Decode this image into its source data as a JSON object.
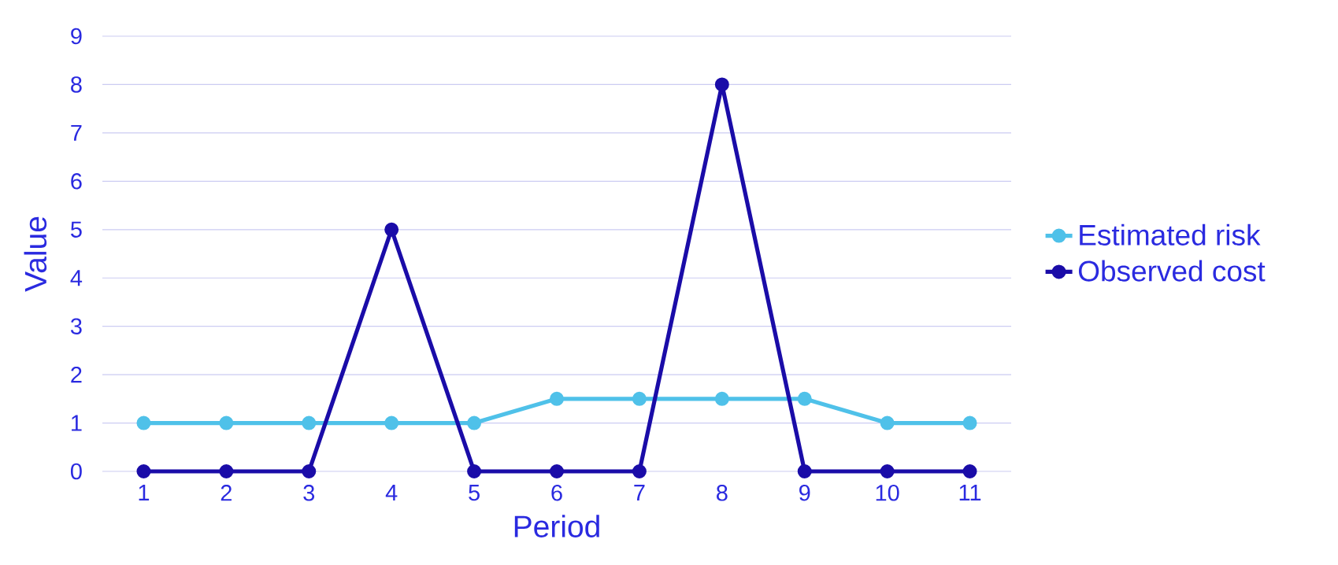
{
  "chart_data": {
    "type": "line",
    "xlabel": "Period",
    "ylabel": "Value",
    "categories": [
      "1",
      "2",
      "3",
      "4",
      "5",
      "6",
      "7",
      "8",
      "9",
      "10",
      "11"
    ],
    "series": [
      {
        "name": "Estimated risk",
        "color": "#4fc1e9",
        "values": [
          1,
          1,
          1,
          1,
          1,
          1.5,
          1.5,
          1.5,
          1.5,
          1,
          1
        ]
      },
      {
        "name": "Observed cost",
        "color": "#1a0ca8",
        "values": [
          0,
          0,
          0,
          5,
          0,
          0,
          0,
          8,
          0,
          0,
          0
        ]
      }
    ],
    "ylim": [
      0,
      9
    ],
    "yticks": [
      0,
      1,
      2,
      3,
      4,
      5,
      6,
      7,
      8,
      9
    ],
    "grid": "y",
    "legend": "right",
    "marker": "circle",
    "line_style": "solid"
  }
}
